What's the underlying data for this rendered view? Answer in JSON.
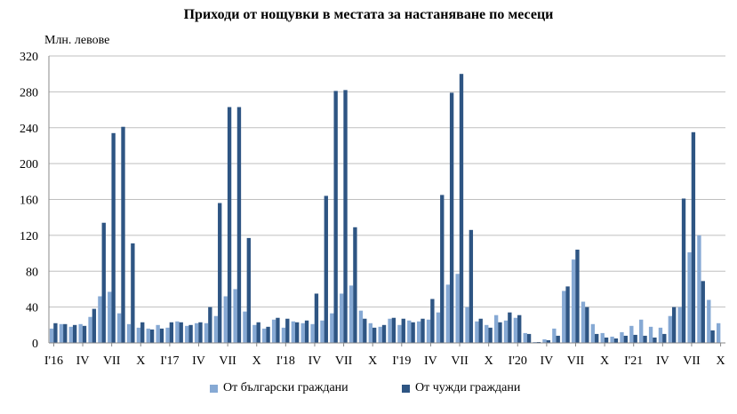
{
  "chart_data": {
    "type": "bar",
    "title": "Приходи от нощувки в местата за настаняване по месеци",
    "ylabel": "Млн. левове",
    "ylim": [
      0,
      320
    ],
    "yticks": [
      0,
      40,
      80,
      120,
      160,
      200,
      240,
      280,
      320
    ],
    "grid": true,
    "legend_position": "bottom",
    "colors": {
      "bulgarian": "#86a9d4",
      "foreign": "#2e5583",
      "axis": "#888888",
      "grid": "#bfbfbf"
    },
    "x_tick_labels": [
      {
        "index": 0,
        "label": "I'16"
      },
      {
        "index": 3,
        "label": "IV"
      },
      {
        "index": 6,
        "label": "VII"
      },
      {
        "index": 9,
        "label": "X"
      },
      {
        "index": 12,
        "label": "I'17"
      },
      {
        "index": 15,
        "label": "IV"
      },
      {
        "index": 18,
        "label": "VII"
      },
      {
        "index": 21,
        "label": "X"
      },
      {
        "index": 24,
        "label": "I'18"
      },
      {
        "index": 27,
        "label": "IV"
      },
      {
        "index": 30,
        "label": "VII"
      },
      {
        "index": 33,
        "label": "X"
      },
      {
        "index": 36,
        "label": "I'19"
      },
      {
        "index": 39,
        "label": "IV"
      },
      {
        "index": 42,
        "label": "VII"
      },
      {
        "index": 45,
        "label": "X"
      },
      {
        "index": 48,
        "label": "I'20"
      },
      {
        "index": 51,
        "label": "IV"
      },
      {
        "index": 54,
        "label": "VII"
      },
      {
        "index": 57,
        "label": "X"
      },
      {
        "index": 60,
        "label": "I'21"
      },
      {
        "index": 63,
        "label": "IV"
      },
      {
        "index": 66,
        "label": "VII"
      },
      {
        "index": 69,
        "label": "X"
      }
    ],
    "series": [
      {
        "name": "От български граждани",
        "values": [
          16,
          21,
          18,
          21,
          29,
          52,
          57,
          33,
          21,
          17,
          16,
          20,
          17,
          24,
          19,
          22,
          22,
          30,
          52,
          60,
          35,
          20,
          16,
          26,
          17,
          24,
          22,
          21,
          25,
          33,
          55,
          64,
          36,
          22,
          18,
          27,
          20,
          25,
          24,
          26,
          34,
          65,
          77,
          40,
          24,
          20,
          31,
          25,
          28,
          11,
          1,
          4,
          16,
          58,
          93,
          46,
          21,
          11,
          7,
          12,
          19,
          26,
          18,
          17,
          30,
          40,
          101,
          120,
          48,
          22
        ]
      },
      {
        "name": "От чужди граждани",
        "values": [
          22,
          21,
          20,
          19,
          38,
          134,
          234,
          241,
          111,
          23,
          15,
          16,
          23,
          23,
          20,
          23,
          40,
          156,
          263,
          263,
          117,
          23,
          18,
          28,
          27,
          23,
          25,
          55,
          164,
          281,
          282,
          129,
          27,
          17,
          20,
          28,
          27,
          23,
          27,
          49,
          165,
          279,
          300,
          126,
          27,
          17,
          23,
          34,
          31,
          10,
          1,
          3,
          8,
          63,
          104,
          40,
          10,
          6,
          5,
          8,
          9,
          8,
          6,
          10,
          40,
          161,
          235,
          69,
          14,
          0
        ]
      }
    ]
  }
}
